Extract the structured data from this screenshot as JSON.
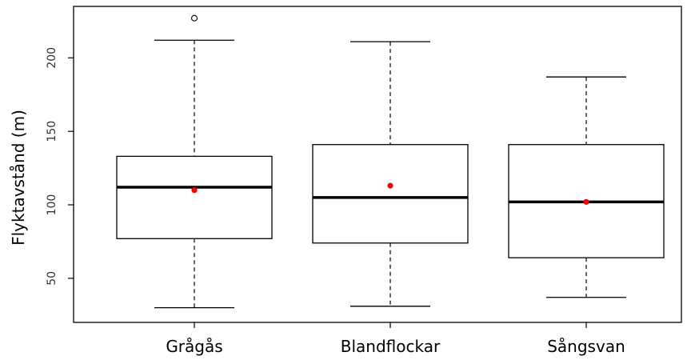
{
  "chart_data": {
    "type": "boxplot",
    "xlabel": "",
    "ylabel": "Flyktavstånd (m)",
    "ylim": [
      20,
      235
    ],
    "yticks": [
      50,
      100,
      150,
      200
    ],
    "grid": false,
    "categories": [
      "Grågås",
      "Blandflockar",
      "Sångsvan"
    ],
    "series": [
      {
        "category": "Grågås",
        "whisker_low": 30,
        "q1": 77,
        "median": 112,
        "q3": 133,
        "whisker_high": 212,
        "mean": 110,
        "outliers": [
          227
        ]
      },
      {
        "category": "Blandflockar",
        "whisker_low": 31,
        "q1": 74,
        "median": 105,
        "q3": 141,
        "whisker_high": 211,
        "mean": 113,
        "outliers": []
      },
      {
        "category": "Sångsvan",
        "whisker_low": 37,
        "q1": 64,
        "median": 102,
        "q3": 141,
        "whisker_high": 187,
        "mean": 102,
        "outliers": []
      }
    ],
    "colors": {
      "box": "#000000",
      "median": "#000000",
      "mean_point": "#ff0000"
    }
  }
}
